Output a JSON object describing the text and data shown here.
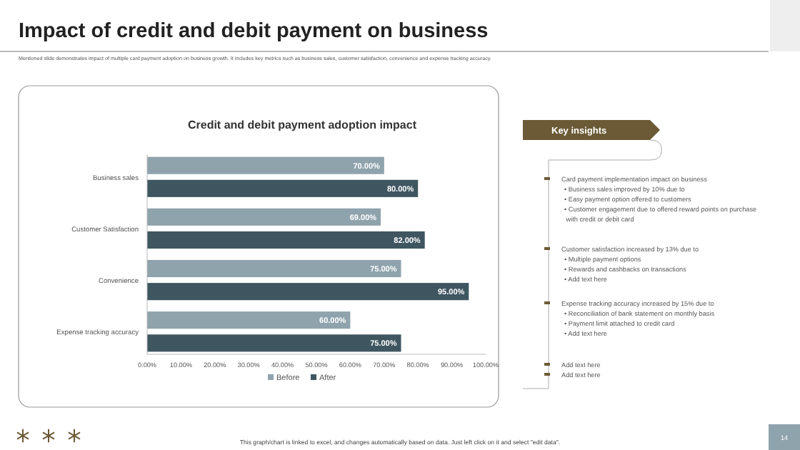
{
  "chart_data": {
    "type": "bar",
    "orientation": "horizontal",
    "title": "Credit and debit payment adoption impact",
    "categories": [
      "Business sales",
      "Customer Satisfaction",
      "Convenience",
      "Expense tracking accuracy"
    ],
    "series": [
      {
        "name": "Before",
        "color": "#8fa3ad",
        "values": [
          70,
          69,
          75,
          60
        ],
        "value_labels": [
          "70.00%",
          "69.00%",
          "75.00%",
          "60.00%"
        ]
      },
      {
        "name": "After",
        "color": "#3f5661",
        "values": [
          80,
          82,
          95,
          75
        ],
        "value_labels": [
          "80.00%",
          "82.00%",
          "95.00%",
          "75.00%"
        ]
      }
    ],
    "xlim": [
      0,
      100
    ],
    "xticks": [
      {
        "value": 0,
        "label": "0.00%"
      },
      {
        "value": 10,
        "label": "10.00%"
      },
      {
        "value": 20,
        "label": "20.00%"
      },
      {
        "value": 30,
        "label": "30.00%"
      },
      {
        "value": 40,
        "label": "40.00%"
      },
      {
        "value": 50,
        "label": "50.00%"
      },
      {
        "value": 60,
        "label": "60.00%"
      },
      {
        "value": 70,
        "label": "70.00%"
      },
      {
        "value": 80,
        "label": "80.00%"
      },
      {
        "value": 90,
        "label": "90.00%"
      },
      {
        "value": 100,
        "label": "100.00%"
      }
    ],
    "grid": false,
    "legend": "bottom",
    "annotations": [
      "Impact of credit and debit payment on business",
      "Mentioned slide demonstrates impact of multiple card payment adoption on business growth. It includes key metrics such as business sales, customer satisfaction, convenience and expense tracking accuracy.",
      "Key insights",
      "Card payment implementation impact on business",
      "• Business sales improved by 10% due to",
      "• Easy payment option offered to customers",
      "• Customer engagement due to offered reward points on purchase with credit or debit card",
      "Customer satisfaction increased by 13% due to",
      "• Multiple payment options",
      "• Rewards and cashbacks on transactions",
      "• Add text here",
      "Expense tracking accuracy increased by 15% due to",
      "• Reconciliation of bank statement on monthly basis",
      "• Payment limit attached to credit card",
      "• Add text here",
      "Add text here",
      "Add text here",
      "This graph/chart is linked to excel, and changes automatically based on data. Just left click on it and select \"edit data\".",
      "14"
    ]
  }
}
